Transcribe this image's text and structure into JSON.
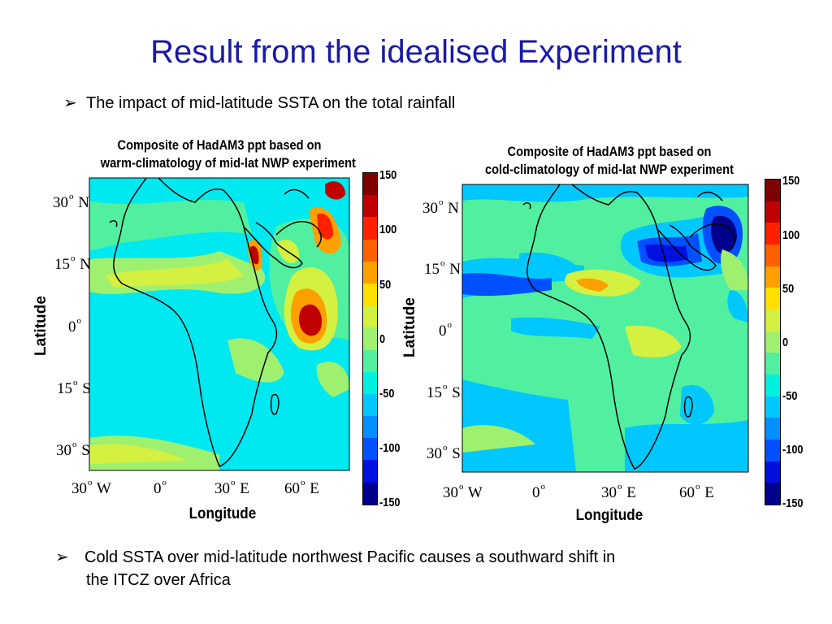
{
  "slide": {
    "title": "Result from the idealised Experiment",
    "bullets": [
      "The impact of mid-latitude SSTA on the total rainfall",
      "Cold SSTA over mid-latitude northwest Pacific causes a southward shift  in",
      "the ITCZ over Africa"
    ],
    "bullet_marker": "➢"
  },
  "maps": [
    {
      "title_line1": "Composite of HadAM3 ppt based on",
      "title_line2": "warm-climatology of mid-lat NWP experiment",
      "y_ticks": [
        {
          "deg": "30",
          "hemi": "N"
        },
        {
          "deg": "15",
          "hemi": "N"
        },
        {
          "deg": "0",
          "hemi": ""
        },
        {
          "deg": "15",
          "hemi": "S"
        },
        {
          "deg": "30",
          "hemi": "S"
        }
      ],
      "x_ticks": [
        {
          "deg": "30",
          "hemi": "W"
        },
        {
          "deg": "0",
          "hemi": ""
        },
        {
          "deg": "30",
          "hemi": "E"
        },
        {
          "deg": "60",
          "hemi": "E"
        }
      ],
      "xlabel": "Longitude",
      "ylabel": "Latitude",
      "colorbar_labels": [
        "150",
        "100",
        "50",
        "0",
        "-50",
        "-100",
        "-150"
      ]
    },
    {
      "title_line1": "Composite of HadAM3 ppt based on",
      "title_line2": "cold-climatology of mid-lat NWP experiment",
      "y_ticks": [
        {
          "deg": "30",
          "hemi": "N"
        },
        {
          "deg": "15",
          "hemi": "N"
        },
        {
          "deg": "0",
          "hemi": ""
        },
        {
          "deg": "15",
          "hemi": "S"
        },
        {
          "deg": "30",
          "hemi": "S"
        }
      ],
      "x_ticks": [
        {
          "deg": "30",
          "hemi": "W"
        },
        {
          "deg": "0",
          "hemi": ""
        },
        {
          "deg": "30",
          "hemi": "E"
        },
        {
          "deg": "60",
          "hemi": "E"
        }
      ],
      "xlabel": "Longitude",
      "ylabel": "Latitude",
      "colorbar_labels": [
        "150",
        "100",
        "50",
        "0",
        "-50",
        "-100",
        "-150"
      ]
    }
  ],
  "colorscale": [
    "#7f0000",
    "#c00000",
    "#ff2000",
    "#ff6000",
    "#ffa000",
    "#ffe000",
    "#d4f040",
    "#a0f070",
    "#50f0a0",
    "#00f0e0",
    "#00c8ff",
    "#0090ff",
    "#0050ff",
    "#0010e0",
    "#00008f"
  ]
}
